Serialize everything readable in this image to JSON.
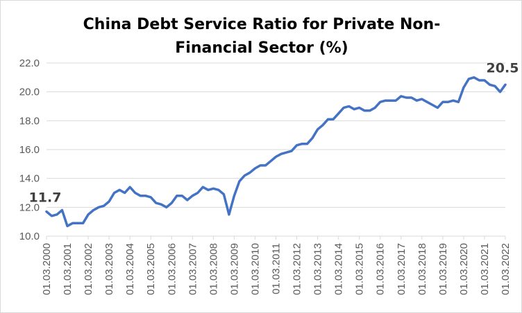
{
  "chart_data": {
    "type": "line",
    "title_lines": [
      "China Debt Service Ratio for Private Non-",
      "Financial Sector (%)"
    ],
    "xlabel": "",
    "ylabel": "",
    "ylim": [
      10.0,
      22.0
    ],
    "yticks": [
      "10.0",
      "12.0",
      "14.0",
      "16.0",
      "18.0",
      "20.0",
      "22.0"
    ],
    "ytick_values": [
      10,
      12,
      14,
      16,
      18,
      20,
      22
    ],
    "xticks": [
      "01.03.2000",
      "01.03.2001",
      "01.03.2002",
      "01.03.2003",
      "01.03.2004",
      "01.03.2005",
      "01.03.2006",
      "01.03.2007",
      "01.03.2008",
      "01.03.2009",
      "01.03.2010",
      "01.03.2011",
      "01.03.2012",
      "01.03.2013",
      "01.03.2014",
      "01.03.2015",
      "01.03.2016",
      "01.03.2017",
      "01.03.2018",
      "01.03.2019",
      "01.03.2020",
      "01.03.2021",
      "01.03.2022"
    ],
    "grid": "horizontal",
    "legend": "none",
    "line_color": "#4472c4",
    "label_color": "#404040",
    "first_label": "11.7",
    "last_label": "20.5",
    "series": [
      {
        "values": [
          11.7,
          11.4,
          11.5,
          11.8,
          10.7,
          10.9,
          10.9,
          10.9,
          11.5,
          11.8,
          12.0,
          12.1,
          12.4,
          13.0,
          13.2,
          13.0,
          13.4,
          13.0,
          12.8,
          12.8,
          12.7,
          12.3,
          12.2,
          12.0,
          12.3,
          12.8,
          12.8,
          12.5,
          12.8,
          13.0,
          13.4,
          13.2,
          13.3,
          13.2,
          12.9,
          11.5,
          12.8,
          13.8,
          14.2,
          14.4,
          14.7,
          14.9,
          14.9,
          15.2,
          15.5,
          15.7,
          15.8,
          15.9,
          16.3,
          16.4,
          16.4,
          16.8,
          17.4,
          17.7,
          18.1,
          18.1,
          18.5,
          18.9,
          19.0,
          18.8,
          18.9,
          18.7,
          18.7,
          18.9,
          19.3,
          19.4,
          19.4,
          19.4,
          19.7,
          19.6,
          19.6,
          19.4,
          19.5,
          19.3,
          19.1,
          18.9,
          19.3,
          19.3,
          19.4,
          19.3,
          20.3,
          20.9,
          21.0,
          20.8,
          20.8,
          20.5,
          20.4,
          20.0,
          20.5
        ]
      }
    ]
  }
}
